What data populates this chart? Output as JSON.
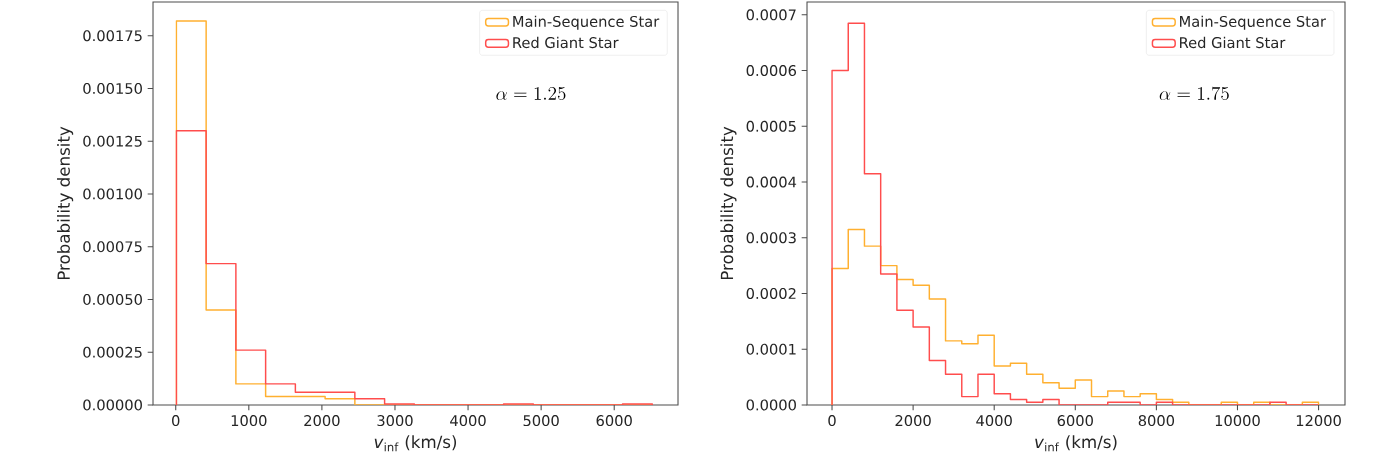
{
  "chart_data": [
    {
      "type": "histogram",
      "xlabel": "*v*$_{inf}$ (km/s)",
      "ylabel": "Probability density",
      "annotations": [
        "\\alpha = 1.25"
      ],
      "legend": "top right",
      "xlim": [
        -311,
        6873
      ],
      "ylim": [
        0,
        0.00191
      ],
      "xticks": [
        0,
        1000,
        2000,
        3000,
        4000,
        5000,
        6000
      ],
      "yticks": [
        {
          "value": 0,
          "label": "0.00000"
        },
        {
          "value": 0.00025,
          "label": "0.00025"
        },
        {
          "value": 0.0005,
          "label": "0.00050"
        },
        {
          "value": 0.00075,
          "label": "0.00075"
        },
        {
          "value": 0.001,
          "label": "0.00100"
        },
        {
          "value": 0.00125,
          "label": "0.00125"
        },
        {
          "value": 0.0015,
          "label": "0.00150"
        },
        {
          "value": 0.00175,
          "label": "0.00175"
        }
      ],
      "bins": [
        9,
        416,
        823,
        1230,
        1637,
        2044,
        2451,
        2858,
        3265,
        3672,
        4079,
        4486,
        4893,
        5300,
        5707,
        6114,
        6521
      ],
      "series": [
        {
          "name": "Main-Sequence Star",
          "color": "#ffb030",
          "values": [
            0.00182,
            0.00045,
            0.0001,
            4e-05,
            4e-05,
            3e-05,
            0,
            0,
            0,
            0,
            0,
            0,
            0,
            0,
            0,
            0
          ]
        },
        {
          "name": "Red Giant Star",
          "color": "#ff4d4d",
          "values": [
            0.0013,
            0.00067,
            0.00026,
            0.0001,
            6e-05,
            6e-05,
            3e-05,
            5e-06,
            0,
            0,
            0,
            5e-06,
            0,
            0,
            0,
            5e-06
          ]
        }
      ]
    },
    {
      "type": "histogram",
      "xlabel": "*v*$_{inf}$ (km/s)",
      "ylabel": "Probability density",
      "annotations": [
        "\\alpha = 1.75"
      ],
      "legend": "top right",
      "xlim": [
        -617,
        12652
      ],
      "ylim": [
        0,
        0.000723
      ],
      "xticks": [
        0,
        2000,
        4000,
        6000,
        8000,
        10000,
        12000
      ],
      "yticks": [
        {
          "value": 0,
          "label": "0.0000"
        },
        {
          "value": 0.0001,
          "label": "0.0001"
        },
        {
          "value": 0.0002,
          "label": "0.0002"
        },
        {
          "value": 0.0003,
          "label": "0.0003"
        },
        {
          "value": 0.0004,
          "label": "0.0004"
        },
        {
          "value": 0.0005,
          "label": "0.0005"
        },
        {
          "value": 0.0006,
          "label": "0.0006"
        },
        {
          "value": 0.0007,
          "label": "0.0007"
        }
      ],
      "bins": [
        0,
        400,
        800,
        1200,
        1600,
        2000,
        2400,
        2800,
        3200,
        3600,
        4000,
        4400,
        4800,
        5200,
        5600,
        6000,
        6400,
        6800,
        7200,
        7600,
        8000,
        8400,
        8800,
        9200,
        9600,
        10000,
        10400,
        10800,
        11200,
        11600,
        12000
      ],
      "series": [
        {
          "name": "Main-Sequence Star",
          "color": "#ffb030",
          "values": [
            0.000245,
            0.000315,
            0.000285,
            0.00025,
            0.000225,
            0.000215,
            0.00019,
            0.000115,
            0.00011,
            0.000125,
            7e-05,
            7.5e-05,
            5.5e-05,
            4e-05,
            3e-05,
            4.5e-05,
            1.5e-05,
            2.5e-05,
            1.5e-05,
            2e-05,
            1e-05,
            5e-06,
            0,
            0,
            5e-06,
            0,
            5e-06,
            0,
            0,
            5e-06
          ]
        },
        {
          "name": "Red Giant Star",
          "color": "#ff4d4d",
          "values": [
            0.0006,
            0.000685,
            0.000415,
            0.000235,
            0.00017,
            0.00014,
            8e-05,
            5.5e-05,
            1.5e-05,
            5.5e-05,
            2e-05,
            1e-05,
            5e-06,
            1e-05,
            0,
            0,
            0,
            5e-06,
            5e-06,
            0,
            5e-06,
            0,
            0,
            0,
            0,
            0,
            0,
            5e-06,
            0,
            0
          ]
        }
      ]
    }
  ]
}
